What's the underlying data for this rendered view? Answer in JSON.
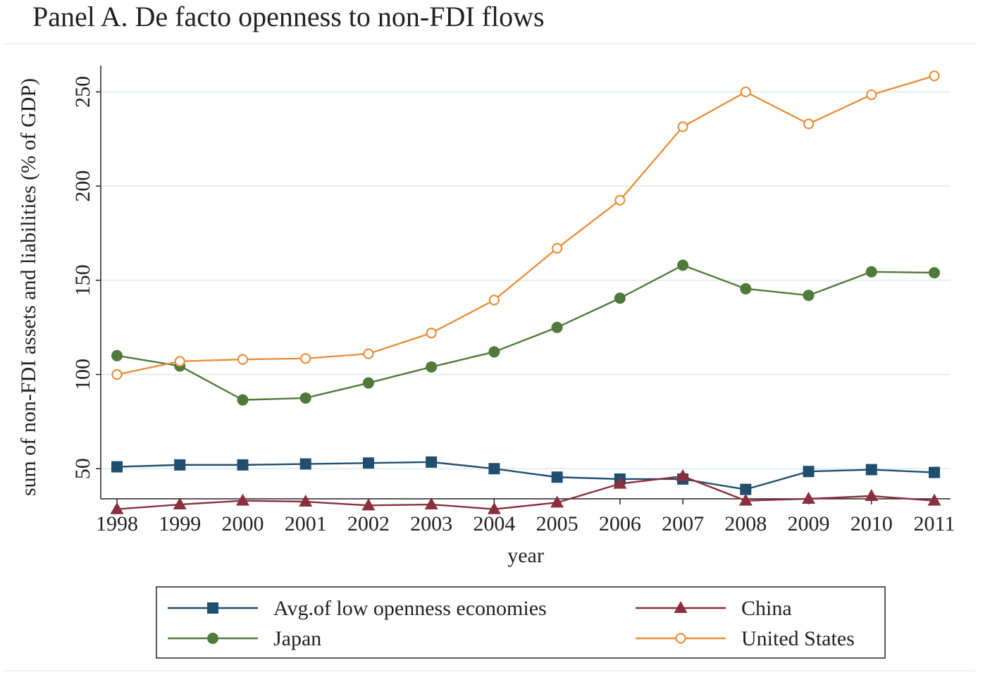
{
  "chart_data": {
    "type": "line",
    "title": "Panel A. De facto openness to non-FDI flows",
    "xlabel": "year",
    "ylabel": "sum of non-FDI assets and liabilities (% of GDP)",
    "x": [
      1998,
      1999,
      2000,
      2001,
      2002,
      2003,
      2004,
      2005,
      2006,
      2007,
      2008,
      2009,
      2010,
      2011
    ],
    "xlim": [
      1998,
      2011
    ],
    "ylim": [
      34,
      264
    ],
    "yticks": [
      50,
      100,
      150,
      200,
      250
    ],
    "grid": true,
    "legend_position": "bottom",
    "series": [
      {
        "name": "Avg.of low openness economies",
        "color": "#1f4e6e",
        "marker": "square",
        "values": [
          51,
          52,
          52,
          52.5,
          53,
          53.5,
          50,
          45.5,
          44.5,
          44.5,
          39,
          48.5,
          49.5,
          48
        ]
      },
      {
        "name": "China",
        "color": "#8b2f3c",
        "marker": "triangle",
        "values": [
          28.5,
          31,
          33,
          32.5,
          30.5,
          31,
          28.5,
          32,
          42,
          46,
          33,
          34,
          35.5,
          33
        ]
      },
      {
        "name": "Japan",
        "color": "#4f7a3a",
        "marker": "circle",
        "values": [
          110,
          104.5,
          86.5,
          87.5,
          95.5,
          104,
          112,
          125,
          140.5,
          158,
          145.5,
          142,
          154.5,
          154
        ]
      },
      {
        "name": "United States",
        "color": "#e8903c",
        "marker": "hollow-circle",
        "values": [
          100,
          107,
          108,
          108.5,
          111,
          122,
          139.5,
          167,
          192.5,
          231.5,
          250,
          233,
          248.5,
          258.5
        ]
      }
    ]
  }
}
